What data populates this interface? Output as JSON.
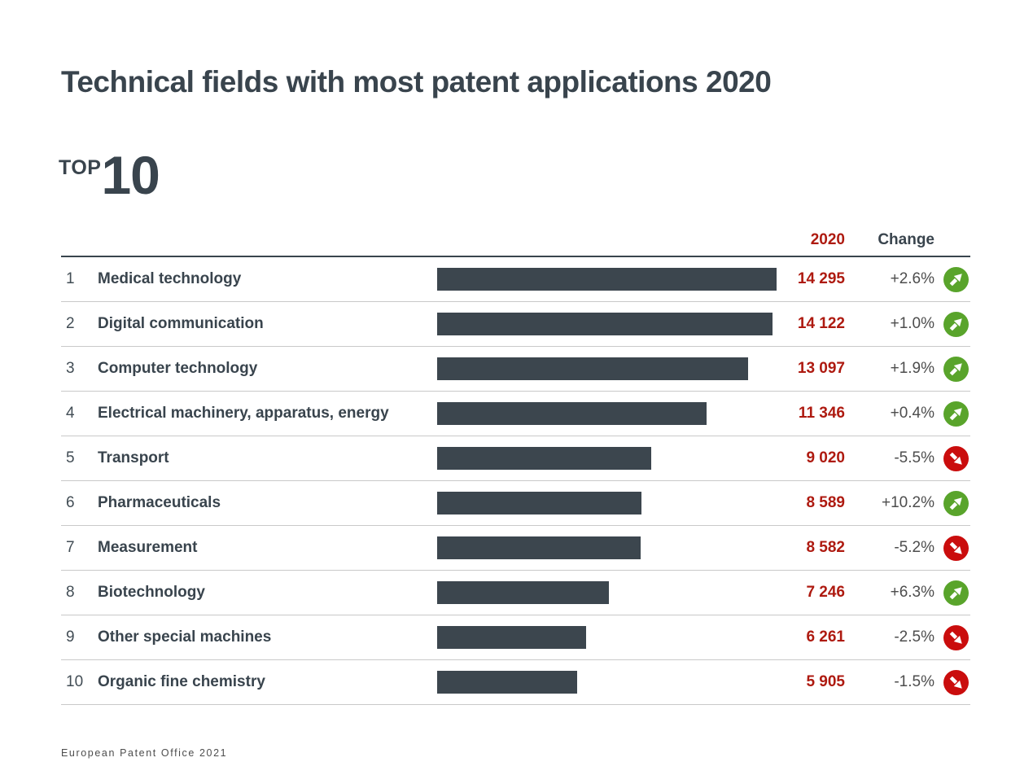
{
  "page": {
    "title": "Technical fields with most patent applications 2020",
    "top_label": "TOP",
    "top_number": "10",
    "footer": "European Patent Office 2021"
  },
  "table_headers": {
    "year": "2020",
    "change": "Change"
  },
  "colors": {
    "title_slate": "#39444d",
    "bar_slate": "#3c464e",
    "value_red": "#ae1a10",
    "up_green": "#59a42b",
    "down_red": "#ca0d0d"
  },
  "chart_data": {
    "type": "bar",
    "orientation": "horizontal",
    "title": "Technical fields with most patent applications 2020",
    "year_column": "2020",
    "change_column": "Change",
    "value_axis_min": 0,
    "max_value": 14295,
    "grid": false,
    "rows": [
      {
        "rank": "1",
        "label": "Medical technology",
        "value": 14295,
        "value_display": "14 295",
        "change": "+2.6%",
        "direction": "up"
      },
      {
        "rank": "2",
        "label": "Digital communication",
        "value": 14122,
        "value_display": "14 122",
        "change": "+1.0%",
        "direction": "up"
      },
      {
        "rank": "3",
        "label": "Computer technology",
        "value": 13097,
        "value_display": "13 097",
        "change": "+1.9%",
        "direction": "up"
      },
      {
        "rank": "4",
        "label": "Electrical machinery, apparatus, energy",
        "value": 11346,
        "value_display": "11 346",
        "change": "+0.4%",
        "direction": "up"
      },
      {
        "rank": "5",
        "label": "Transport",
        "value": 9020,
        "value_display": "9 020",
        "change": "-5.5%",
        "direction": "down"
      },
      {
        "rank": "6",
        "label": "Pharmaceuticals",
        "value": 8589,
        "value_display": "8 589",
        "change": "+10.2%",
        "direction": "up"
      },
      {
        "rank": "7",
        "label": "Measurement",
        "value": 8582,
        "value_display": "8 582",
        "change": "-5.2%",
        "direction": "down"
      },
      {
        "rank": "8",
        "label": "Biotechnology",
        "value": 7246,
        "value_display": "7 246",
        "change": "+6.3%",
        "direction": "up"
      },
      {
        "rank": "9",
        "label": "Other special machines",
        "value": 6261,
        "value_display": "6 261",
        "change": "-2.5%",
        "direction": "down"
      },
      {
        "rank": "10",
        "label": "Organic fine chemistry",
        "value": 5905,
        "value_display": "5 905",
        "change": "-1.5%",
        "direction": "down"
      }
    ]
  }
}
